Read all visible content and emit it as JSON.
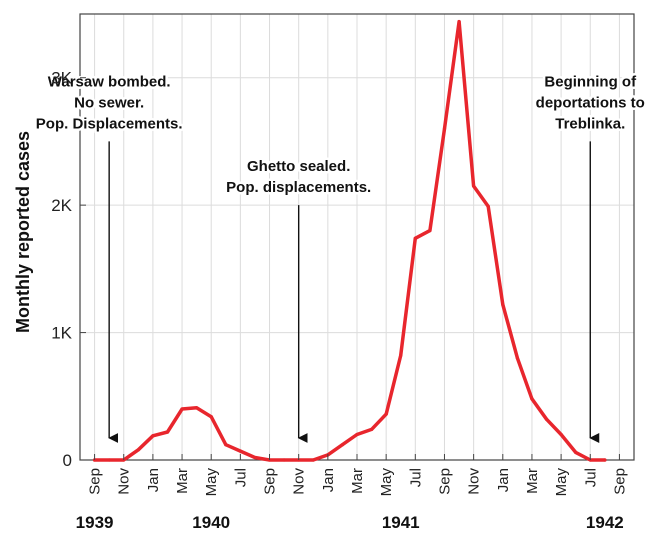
{
  "chart_data": {
    "type": "line",
    "title": "",
    "xlabel": "",
    "ylabel": "Monthly reported cases",
    "ylim": [
      0,
      3500
    ],
    "yticks": [
      0,
      1000,
      2000,
      3000
    ],
    "ytick_labels": [
      "0",
      "1K",
      "2K",
      "3K"
    ],
    "grid": true,
    "series": [
      {
        "color": "#e8262d",
        "x": [
          "1939-09",
          "1939-10",
          "1939-11",
          "1939-12",
          "1940-01",
          "1940-02",
          "1940-03",
          "1940-04",
          "1940-05",
          "1940-06",
          "1940-07",
          "1940-08",
          "1940-09",
          "1940-10",
          "1940-11",
          "1940-12",
          "1941-01",
          "1941-02",
          "1941-03",
          "1941-04",
          "1941-05",
          "1941-06",
          "1941-07",
          "1941-08",
          "1941-09",
          "1941-10",
          "1941-11",
          "1941-12",
          "1942-01",
          "1942-02",
          "1942-03",
          "1942-04",
          "1942-05",
          "1942-06",
          "1942-07",
          "1942-08"
        ],
        "values": [
          0,
          0,
          0,
          80,
          190,
          220,
          400,
          410,
          340,
          120,
          70,
          20,
          0,
          0,
          0,
          0,
          40,
          120,
          200,
          240,
          360,
          820,
          1740,
          1800,
          2600,
          3440,
          2150,
          1990,
          1220,
          800,
          480,
          320,
          200,
          60,
          0,
          0
        ]
      }
    ],
    "x_tick_labels": [
      "Sep",
      "Nov",
      "Jan",
      "Mar",
      "May",
      "Jul",
      "Sep",
      "Nov",
      "Jan",
      "Mar",
      "May",
      "Jul",
      "Sep",
      "Nov",
      "Jan",
      "Mar",
      "May",
      "Jul",
      "Sep"
    ],
    "x_tick_dates": [
      "1939-09",
      "1939-11",
      "1940-01",
      "1940-03",
      "1940-05",
      "1940-07",
      "1940-09",
      "1940-11",
      "1941-01",
      "1941-03",
      "1941-05",
      "1941-07",
      "1941-09",
      "1941-11",
      "1942-01",
      "1942-03",
      "1942-05",
      "1942-07",
      "1942-09"
    ],
    "xlim": [
      "1939-08",
      "1942-10"
    ],
    "year_labels": [
      {
        "label": "1939",
        "date": "1939-09"
      },
      {
        "label": "1940",
        "date": "1940-05"
      },
      {
        "label": "1941",
        "date": "1941-06"
      },
      {
        "label": "1942",
        "date": "1942-08"
      }
    ],
    "annotations": [
      {
        "lines": [
          "Warsaw bombed.",
          "No sewer.",
          "Pop. Displacements."
        ],
        "date": "1939-10",
        "arrow_from": 2500
      },
      {
        "lines": [
          "Ghetto sealed.",
          "Pop. displacements."
        ],
        "date": "1940-11",
        "arrow_from": 2000
      },
      {
        "lines": [
          "Beginning of",
          "deportations to",
          "Treblinka."
        ],
        "date": "1942-07",
        "arrow_from": 2500
      }
    ]
  }
}
